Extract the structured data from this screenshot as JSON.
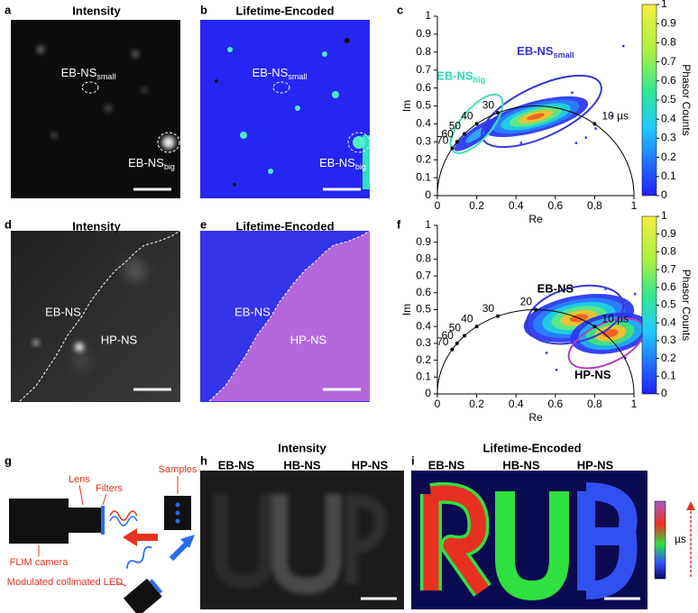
{
  "panels": {
    "a": {
      "label": "a",
      "title": "Intensity",
      "annotations": [
        {
          "text": "EB-NS",
          "sub": "small"
        },
        {
          "text": "EB-NS",
          "sub": "big"
        }
      ]
    },
    "b": {
      "label": "b",
      "title": "Lifetime-Encoded",
      "annotations": [
        {
          "text": "EB-NS",
          "sub": "small"
        },
        {
          "text": "EB-NS",
          "sub": "big"
        }
      ]
    },
    "c": {
      "label": "c",
      "xlabel": "Re",
      "ylabel": "Im",
      "xticks": [
        0,
        0.2,
        0.4,
        0.6,
        0.8,
        1
      ],
      "yticks": [
        0,
        0.1,
        0.2,
        0.3,
        0.4,
        0.5,
        0.6,
        0.7,
        0.8,
        0.9,
        1
      ],
      "colorbar_label": "Phasor Counts",
      "colorbar_ticks": [
        0,
        0.1,
        0.2,
        0.3,
        0.4,
        0.5,
        0.6,
        0.7,
        0.8,
        0.9,
        1
      ],
      "lifetimes": [
        {
          "value": 10,
          "label": "10 µs"
        },
        30,
        40,
        50,
        60,
        70
      ],
      "clusters": [
        {
          "text": "EB-NS",
          "sub": "big"
        },
        {
          "text": "EB-NS",
          "sub": "small"
        }
      ]
    },
    "d": {
      "label": "d",
      "title": "Intensity",
      "annotations": [
        "EB-NS",
        "HP-NS"
      ]
    },
    "e": {
      "label": "e",
      "title": "Lifetime-Encoded",
      "annotations": [
        "EB-NS",
        "HP-NS"
      ]
    },
    "f": {
      "label": "f",
      "xlabel": "Re",
      "ylabel": "Im",
      "xticks": [
        0,
        0.2,
        0.4,
        0.6,
        0.8,
        1
      ],
      "yticks": [
        0,
        0.1,
        0.2,
        0.3,
        0.4,
        0.5,
        0.6,
        0.7,
        0.8,
        0.9,
        1
      ],
      "colorbar_label": "Phasor Counts",
      "colorbar_ticks": [
        0,
        0.1,
        0.2,
        0.3,
        0.4,
        0.5,
        0.6,
        0.7,
        0.8,
        0.9,
        1
      ],
      "lifetimes": [
        {
          "value": 10,
          "label": "10 µs"
        },
        20,
        30,
        40,
        50,
        60,
        70
      ],
      "clusters": [
        "EB-NS",
        "HP-NS"
      ]
    },
    "g": {
      "label": "g",
      "parts": [
        "Lens",
        "Filters",
        "Samples",
        "FLIM camera",
        "Modulated collimated LED"
      ]
    },
    "h": {
      "label": "h",
      "title": "Intensity",
      "columns": [
        "EB-NS",
        "HB-NS",
        "HP-NS"
      ]
    },
    "i": {
      "label": "i",
      "title": "Lifetime-Encoded",
      "columns": [
        "EB-NS",
        "HB-NS",
        "HP-NS"
      ],
      "colorbar_label": "µs"
    }
  }
}
